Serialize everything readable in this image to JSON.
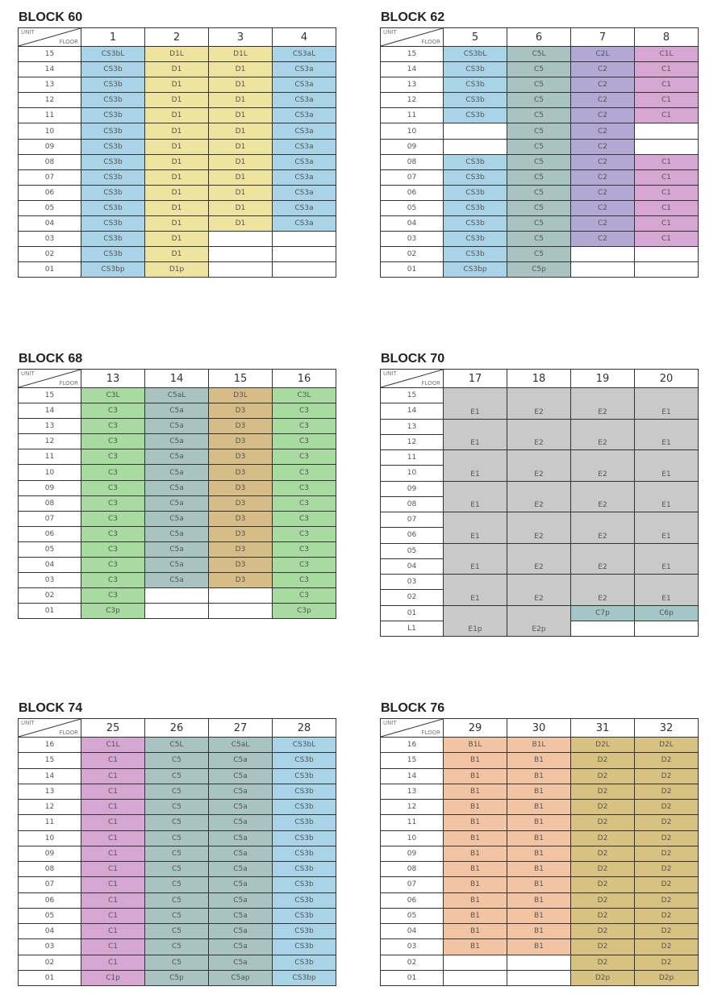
{
  "header_labels": {
    "unit": "UNIT",
    "floor": "FLOOR"
  },
  "type_colors": {
    "CS3b": "#a9d3e6",
    "CS3a": "#a9d3e6",
    "D1": "#efe3a0",
    "C5": "#a9c3c3",
    "C5a": "#a9c3c3",
    "C2": "#b3a8d3",
    "C1": "#d6a7d2",
    "C3": "#a8dba0",
    "D3": "#d6bd88",
    "E1": "#c9c9c9",
    "E2": "#c9c9c9",
    "C7": "#a3c6c6",
    "C6": "#a3c6c6",
    "B1": "#f3c4a3",
    "D2": "#d8c282"
  },
  "blocks": [
    {
      "title": "BLOCK 60",
      "units": [
        "1",
        "2",
        "3",
        "4"
      ],
      "rows": [
        {
          "floor": "15",
          "cells": [
            "CS3bL",
            "D1L",
            "D1L",
            "CS3aL"
          ]
        },
        {
          "floor": "14",
          "cells": [
            "CS3b",
            "D1",
            "D1",
            "CS3a"
          ]
        },
        {
          "floor": "13",
          "cells": [
            "CS3b",
            "D1",
            "D1",
            "CS3a"
          ]
        },
        {
          "floor": "12",
          "cells": [
            "CS3b",
            "D1",
            "D1",
            "CS3a"
          ]
        },
        {
          "floor": "11",
          "cells": [
            "CS3b",
            "D1",
            "D1",
            "CS3a"
          ]
        },
        {
          "floor": "10",
          "cells": [
            "CS3b",
            "D1",
            "D1",
            "CS3a"
          ]
        },
        {
          "floor": "09",
          "cells": [
            "CS3b",
            "D1",
            "D1",
            "CS3a"
          ]
        },
        {
          "floor": "08",
          "cells": [
            "CS3b",
            "D1",
            "D1",
            "CS3a"
          ]
        },
        {
          "floor": "07",
          "cells": [
            "CS3b",
            "D1",
            "D1",
            "CS3a"
          ]
        },
        {
          "floor": "06",
          "cells": [
            "CS3b",
            "D1",
            "D1",
            "CS3a"
          ]
        },
        {
          "floor": "05",
          "cells": [
            "CS3b",
            "D1",
            "D1",
            "CS3a"
          ]
        },
        {
          "floor": "04",
          "cells": [
            "CS3b",
            "D1",
            "D1",
            "CS3a"
          ]
        },
        {
          "floor": "03",
          "cells": [
            "CS3b",
            "D1",
            "",
            ""
          ]
        },
        {
          "floor": "02",
          "cells": [
            "CS3b",
            "D1",
            "",
            ""
          ]
        },
        {
          "floor": "01",
          "cells": [
            "CS3bp",
            "D1p",
            "",
            ""
          ]
        }
      ]
    },
    {
      "title": "BLOCK 62",
      "units": [
        "5",
        "6",
        "7",
        "8"
      ],
      "rows": [
        {
          "floor": "15",
          "cells": [
            "CS3bL",
            "C5L",
            "C2L",
            "C1L"
          ]
        },
        {
          "floor": "14",
          "cells": [
            "CS3b",
            "C5",
            "C2",
            "C1"
          ]
        },
        {
          "floor": "13",
          "cells": [
            "CS3b",
            "C5",
            "C2",
            "C1"
          ]
        },
        {
          "floor": "12",
          "cells": [
            "CS3b",
            "C5",
            "C2",
            "C1"
          ]
        },
        {
          "floor": "11",
          "cells": [
            "CS3b",
            "C5",
            "C2",
            "C1"
          ]
        },
        {
          "floor": "10",
          "cells": [
            "",
            "C5",
            "C2",
            ""
          ]
        },
        {
          "floor": "09",
          "cells": [
            "",
            "C5",
            "C2",
            ""
          ]
        },
        {
          "floor": "08",
          "cells": [
            "CS3b",
            "C5",
            "C2",
            "C1"
          ]
        },
        {
          "floor": "07",
          "cells": [
            "CS3b",
            "C5",
            "C2",
            "C1"
          ]
        },
        {
          "floor": "06",
          "cells": [
            "CS3b",
            "C5",
            "C2",
            "C1"
          ]
        },
        {
          "floor": "05",
          "cells": [
            "CS3b",
            "C5",
            "C2",
            "C1"
          ]
        },
        {
          "floor": "04",
          "cells": [
            "CS3b",
            "C5",
            "C2",
            "C1"
          ]
        },
        {
          "floor": "03",
          "cells": [
            "CS3b",
            "C5",
            "C2",
            "C1"
          ]
        },
        {
          "floor": "02",
          "cells": [
            "CS3b",
            "C5",
            "",
            ""
          ]
        },
        {
          "floor": "01",
          "cells": [
            "CS3bp",
            "C5p",
            "",
            ""
          ]
        }
      ]
    },
    {
      "title": "BLOCK 68",
      "units": [
        "13",
        "14",
        "15",
        "16"
      ],
      "rows": [
        {
          "floor": "15",
          "cells": [
            "C3L",
            "C5aL",
            "D3L",
            "C3L"
          ]
        },
        {
          "floor": "14",
          "cells": [
            "C3",
            "C5a",
            "D3",
            "C3"
          ]
        },
        {
          "floor": "13",
          "cells": [
            "C3",
            "C5a",
            "D3",
            "C3"
          ]
        },
        {
          "floor": "12",
          "cells": [
            "C3",
            "C5a",
            "D3",
            "C3"
          ]
        },
        {
          "floor": "11",
          "cells": [
            "C3",
            "C5a",
            "D3",
            "C3"
          ]
        },
        {
          "floor": "10",
          "cells": [
            "C3",
            "C5a",
            "D3",
            "C3"
          ]
        },
        {
          "floor": "09",
          "cells": [
            "C3",
            "C5a",
            "D3",
            "C3"
          ]
        },
        {
          "floor": "08",
          "cells": [
            "C3",
            "C5a",
            "D3",
            "C3"
          ]
        },
        {
          "floor": "07",
          "cells": [
            "C3",
            "C5a",
            "D3",
            "C3"
          ]
        },
        {
          "floor": "06",
          "cells": [
            "C3",
            "C5a",
            "D3",
            "C3"
          ]
        },
        {
          "floor": "05",
          "cells": [
            "C3",
            "C5a",
            "D3",
            "C3"
          ]
        },
        {
          "floor": "04",
          "cells": [
            "C3",
            "C5a",
            "D3",
            "C3"
          ]
        },
        {
          "floor": "03",
          "cells": [
            "C3",
            "C5a",
            "D3",
            "C3"
          ]
        },
        {
          "floor": "02",
          "cells": [
            "C3",
            "",
            "",
            "C3"
          ]
        },
        {
          "floor": "01",
          "cells": [
            "C3p",
            "",
            "",
            "C3p"
          ]
        }
      ]
    },
    {
      "title": "BLOCK 70",
      "units": [
        "17",
        "18",
        "19",
        "20"
      ],
      "rows": [
        {
          "floor": "15",
          "cells": [
            {
              "label": "E1",
              "span": 2
            },
            {
              "label": "E2",
              "span": 2
            },
            {
              "label": "E2",
              "span": 2
            },
            {
              "label": "E1",
              "span": 2
            }
          ]
        },
        {
          "floor": "14",
          "cells": [
            null,
            null,
            null,
            null
          ]
        },
        {
          "floor": "13",
          "cells": [
            {
              "label": "E1",
              "span": 2
            },
            {
              "label": "E2",
              "span": 2
            },
            {
              "label": "E2",
              "span": 2
            },
            {
              "label": "E1",
              "span": 2
            }
          ]
        },
        {
          "floor": "12",
          "cells": [
            null,
            null,
            null,
            null
          ]
        },
        {
          "floor": "11",
          "cells": [
            {
              "label": "E1",
              "span": 2
            },
            {
              "label": "E2",
              "span": 2
            },
            {
              "label": "E2",
              "span": 2
            },
            {
              "label": "E1",
              "span": 2
            }
          ]
        },
        {
          "floor": "10",
          "cells": [
            null,
            null,
            null,
            null
          ]
        },
        {
          "floor": "09",
          "cells": [
            {
              "label": "E1",
              "span": 2
            },
            {
              "label": "E2",
              "span": 2
            },
            {
              "label": "E2",
              "span": 2
            },
            {
              "label": "E1",
              "span": 2
            }
          ]
        },
        {
          "floor": "08",
          "cells": [
            null,
            null,
            null,
            null
          ]
        },
        {
          "floor": "07",
          "cells": [
            {
              "label": "E1",
              "span": 2
            },
            {
              "label": "E2",
              "span": 2
            },
            {
              "label": "E2",
              "span": 2
            },
            {
              "label": "E1",
              "span": 2
            }
          ]
        },
        {
          "floor": "06",
          "cells": [
            null,
            null,
            null,
            null
          ]
        },
        {
          "floor": "05",
          "cells": [
            {
              "label": "E1",
              "span": 2
            },
            {
              "label": "E2",
              "span": 2
            },
            {
              "label": "E2",
              "span": 2
            },
            {
              "label": "E1",
              "span": 2
            }
          ]
        },
        {
          "floor": "04",
          "cells": [
            null,
            null,
            null,
            null
          ]
        },
        {
          "floor": "03",
          "cells": [
            {
              "label": "E1",
              "span": 2
            },
            {
              "label": "E2",
              "span": 2
            },
            {
              "label": "E2",
              "span": 2
            },
            {
              "label": "E1",
              "span": 2
            }
          ]
        },
        {
          "floor": "02",
          "cells": [
            null,
            null,
            null,
            null
          ]
        },
        {
          "floor": "01",
          "cells": [
            {
              "label": "E1p",
              "span": 2
            },
            {
              "label": "E2p",
              "span": 2
            },
            "C7p",
            "C6p"
          ]
        },
        {
          "floor": "L1",
          "cells": [
            null,
            null,
            "",
            ""
          ]
        }
      ]
    },
    {
      "title": "BLOCK 74",
      "units": [
        "25",
        "26",
        "27",
        "28"
      ],
      "rows": [
        {
          "floor": "16",
          "cells": [
            "C1L",
            "C5L",
            "C5aL",
            "CS3bL"
          ]
        },
        {
          "floor": "15",
          "cells": [
            "C1",
            "C5",
            "C5a",
            "CS3b"
          ]
        },
        {
          "floor": "14",
          "cells": [
            "C1",
            "C5",
            "C5a",
            "CS3b"
          ]
        },
        {
          "floor": "13",
          "cells": [
            "C1",
            "C5",
            "C5a",
            "CS3b"
          ]
        },
        {
          "floor": "12",
          "cells": [
            "C1",
            "C5",
            "C5a",
            "CS3b"
          ]
        },
        {
          "floor": "11",
          "cells": [
            "C1",
            "C5",
            "C5a",
            "CS3b"
          ]
        },
        {
          "floor": "10",
          "cells": [
            "C1",
            "C5",
            "C5a",
            "CS3b"
          ]
        },
        {
          "floor": "09",
          "cells": [
            "C1",
            "C5",
            "C5a",
            "CS3b"
          ]
        },
        {
          "floor": "08",
          "cells": [
            "C1",
            "C5",
            "C5a",
            "CS3b"
          ]
        },
        {
          "floor": "07",
          "cells": [
            "C1",
            "C5",
            "C5a",
            "CS3b"
          ]
        },
        {
          "floor": "06",
          "cells": [
            "C1",
            "C5",
            "C5a",
            "CS3b"
          ]
        },
        {
          "floor": "05",
          "cells": [
            "C1",
            "C5",
            "C5a",
            "CS3b"
          ]
        },
        {
          "floor": "04",
          "cells": [
            "C1",
            "C5",
            "C5a",
            "CS3b"
          ]
        },
        {
          "floor": "03",
          "cells": [
            "C1",
            "C5",
            "C5a",
            "CS3b"
          ]
        },
        {
          "floor": "02",
          "cells": [
            "C1",
            "C5",
            "C5a",
            "CS3b"
          ]
        },
        {
          "floor": "01",
          "cells": [
            "C1p",
            "C5p",
            "C5ap",
            "CS3bp"
          ]
        }
      ]
    },
    {
      "title": "BLOCK 76",
      "units": [
        "29",
        "30",
        "31",
        "32"
      ],
      "rows": [
        {
          "floor": "16",
          "cells": [
            "B1L",
            "B1L",
            "D2L",
            "D2L"
          ]
        },
        {
          "floor": "15",
          "cells": [
            "B1",
            "B1",
            "D2",
            "D2"
          ]
        },
        {
          "floor": "14",
          "cells": [
            "B1",
            "B1",
            "D2",
            "D2"
          ]
        },
        {
          "floor": "13",
          "cells": [
            "B1",
            "B1",
            "D2",
            "D2"
          ]
        },
        {
          "floor": "12",
          "cells": [
            "B1",
            "B1",
            "D2",
            "D2"
          ]
        },
        {
          "floor": "11",
          "cells": [
            "B1",
            "B1",
            "D2",
            "D2"
          ]
        },
        {
          "floor": "10",
          "cells": [
            "B1",
            "B1",
            "D2",
            "D2"
          ]
        },
        {
          "floor": "09",
          "cells": [
            "B1",
            "B1",
            "D2",
            "D2"
          ]
        },
        {
          "floor": "08",
          "cells": [
            "B1",
            "B1",
            "D2",
            "D2"
          ]
        },
        {
          "floor": "07",
          "cells": [
            "B1",
            "B1",
            "D2",
            "D2"
          ]
        },
        {
          "floor": "06",
          "cells": [
            "B1",
            "B1",
            "D2",
            "D2"
          ]
        },
        {
          "floor": "05",
          "cells": [
            "B1",
            "B1",
            "D2",
            "D2"
          ]
        },
        {
          "floor": "04",
          "cells": [
            "B1",
            "B1",
            "D2",
            "D2"
          ]
        },
        {
          "floor": "03",
          "cells": [
            "B1",
            "B1",
            "D2",
            "D2"
          ]
        },
        {
          "floor": "02",
          "cells": [
            "",
            "",
            "D2",
            "D2"
          ]
        },
        {
          "floor": "01",
          "cells": [
            "",
            "",
            "D2p",
            "D2p"
          ]
        }
      ]
    }
  ]
}
